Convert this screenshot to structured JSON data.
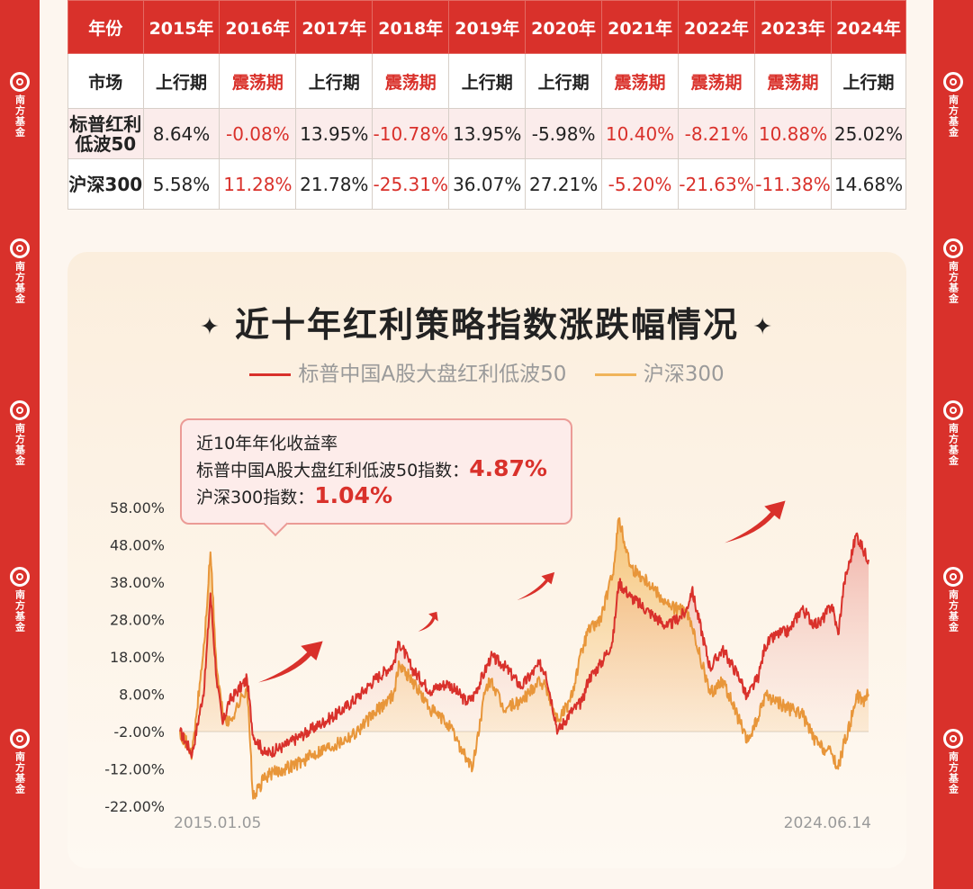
{
  "brand": "南方基金",
  "table": {
    "header": [
      "年份",
      "2015年",
      "2016年",
      "2017年",
      "2018年",
      "2019年",
      "2020年",
      "2021年",
      "2022年",
      "2023年",
      "2024年"
    ],
    "market_row": {
      "label": "市场",
      "cells": [
        {
          "text": "上行期",
          "neg": false
        },
        {
          "text": "震荡期",
          "neg": true
        },
        {
          "text": "上行期",
          "neg": false
        },
        {
          "text": "震荡期",
          "neg": true
        },
        {
          "text": "上行期",
          "neg": false
        },
        {
          "text": "上行期",
          "neg": false
        },
        {
          "text": "震荡期",
          "neg": true
        },
        {
          "text": "震荡期",
          "neg": true
        },
        {
          "text": "震荡期",
          "neg": true
        },
        {
          "text": "上行期",
          "neg": false
        }
      ]
    },
    "rows": [
      {
        "label_line1": "标普红利",
        "label_line2": "低波50",
        "cells": [
          {
            "text": "8.64%",
            "neg": false
          },
          {
            "text": "-0.08%",
            "neg": true
          },
          {
            "text": "13.95%",
            "neg": false
          },
          {
            "text": "-10.78%",
            "neg": true
          },
          {
            "text": "13.95%",
            "neg": false
          },
          {
            "text": "-5.98%",
            "neg": false
          },
          {
            "text": "10.40%",
            "neg": true
          },
          {
            "text": "-8.21%",
            "neg": true
          },
          {
            "text": "10.88%",
            "neg": true
          },
          {
            "text": "25.02%",
            "neg": false
          }
        ]
      },
      {
        "label_line1": "沪深300",
        "label_line2": "",
        "cells": [
          {
            "text": "5.58%",
            "neg": false
          },
          {
            "text": "11.28%",
            "neg": true
          },
          {
            "text": "21.78%",
            "neg": false
          },
          {
            "text": "-25.31%",
            "neg": true
          },
          {
            "text": "36.07%",
            "neg": false
          },
          {
            "text": "27.21%",
            "neg": false
          },
          {
            "text": "-5.20%",
            "neg": true
          },
          {
            "text": "-21.63%",
            "neg": true
          },
          {
            "text": "-11.38%",
            "neg": true
          },
          {
            "text": "14.68%",
            "neg": false
          }
        ]
      }
    ]
  },
  "chart_title": "近十年红利策略指数涨跌幅情况",
  "title_decoration": "✦",
  "callout": {
    "line1": "近10年年化收益率",
    "line2_prefix": "标普中国A股大盘红利低波50指数：",
    "line2_value": "4.87%",
    "line3_prefix": "沪深300指数：",
    "line3_value": "1.04%"
  },
  "colors": {
    "red": "#d9312b",
    "orange": "#e8963a",
    "accent_text": "#d9312b"
  },
  "chart_data": {
    "type": "line",
    "title": "近十年红利策略指数涨跌幅情况",
    "x_start_label": "2015.01.05",
    "x_end_label": "2024.06.14",
    "y_ticks": [
      "58.00%",
      "48.00%",
      "38.00%",
      "28.00%",
      "18.00%",
      "8.00%",
      "-2.00%",
      "-12.00%",
      "-22.00%"
    ],
    "y_tick_values": [
      58,
      48,
      38,
      28,
      18,
      8,
      -2,
      -12,
      -22
    ],
    "ylim": [
      -22,
      58
    ],
    "baseline": -2,
    "legend_position": "top-center",
    "series": [
      {
        "name": "标普中国A股大盘红利低波50",
        "color": "#d9312b",
        "x": [
          "2015-01",
          "2015-03",
          "2015-05",
          "2015-06",
          "2015-07",
          "2015-08",
          "2015-09",
          "2015-12",
          "2016-01",
          "2016-03",
          "2016-06",
          "2016-09",
          "2016-12",
          "2017-03",
          "2017-06",
          "2017-09",
          "2017-12",
          "2018-01",
          "2018-03",
          "2018-06",
          "2018-09",
          "2018-12",
          "2019-01",
          "2019-03",
          "2019-04",
          "2019-06",
          "2019-09",
          "2019-12",
          "2020-01",
          "2020-03",
          "2020-05",
          "2020-07",
          "2020-08",
          "2020-10",
          "2020-12",
          "2021-01",
          "2021-03",
          "2021-06",
          "2021-09",
          "2021-12",
          "2022-01",
          "2022-04",
          "2022-06",
          "2022-09",
          "2022-10",
          "2022-12",
          "2023-01",
          "2023-03",
          "2023-05",
          "2023-07",
          "2023-09",
          "2023-10",
          "2023-12",
          "2024-01",
          "2024-02",
          "2024-03",
          "2024-04",
          "2024-05",
          "2024-06"
        ],
        "values": [
          -2,
          -8,
          10,
          35,
          12,
          0,
          6,
          12,
          -3,
          -8,
          -6,
          -3,
          0,
          3,
          7,
          12,
          16,
          22,
          15,
          9,
          11,
          6,
          7,
          14,
          18,
          16,
          10,
          16,
          14,
          -2,
          3,
          6,
          12,
          16,
          22,
          38,
          34,
          30,
          26,
          30,
          36,
          15,
          20,
          12,
          7,
          13,
          21,
          24,
          25,
          31,
          27,
          27,
          32,
          24,
          38,
          44,
          51,
          47,
          44
        ]
      },
      {
        "name": "沪深300",
        "color": "#e8963a",
        "x": [
          "2015-01",
          "2015-03",
          "2015-05",
          "2015-06",
          "2015-07",
          "2015-08",
          "2015-09",
          "2015-12",
          "2016-01",
          "2016-03",
          "2016-06",
          "2016-09",
          "2016-12",
          "2017-03",
          "2017-06",
          "2017-09",
          "2017-12",
          "2018-01",
          "2018-03",
          "2018-06",
          "2018-09",
          "2018-12",
          "2019-01",
          "2019-03",
          "2019-04",
          "2019-06",
          "2019-09",
          "2019-12",
          "2020-01",
          "2020-03",
          "2020-05",
          "2020-07",
          "2020-08",
          "2020-10",
          "2020-12",
          "2021-01",
          "2021-03",
          "2021-06",
          "2021-09",
          "2021-12",
          "2022-01",
          "2022-04",
          "2022-06",
          "2022-09",
          "2022-10",
          "2022-12",
          "2023-01",
          "2023-03",
          "2023-05",
          "2023-07",
          "2023-09",
          "2023-10",
          "2023-12",
          "2024-01",
          "2024-02",
          "2024-03",
          "2024-04",
          "2024-05",
          "2024-06"
        ],
        "values": [
          -2,
          -8,
          22,
          46,
          15,
          3,
          0,
          10,
          -20,
          -14,
          -12,
          -10,
          -7,
          -5,
          -2,
          3,
          8,
          16,
          12,
          4,
          0,
          -9,
          -12,
          8,
          12,
          4,
          6,
          12,
          10,
          1,
          6,
          20,
          25,
          28,
          40,
          55,
          42,
          38,
          32,
          30,
          26,
          8,
          12,
          0,
          -5,
          2,
          8,
          6,
          4,
          3,
          -4,
          -6,
          -8,
          -12,
          -5,
          0,
          8,
          6,
          8
        ]
      }
    ]
  }
}
